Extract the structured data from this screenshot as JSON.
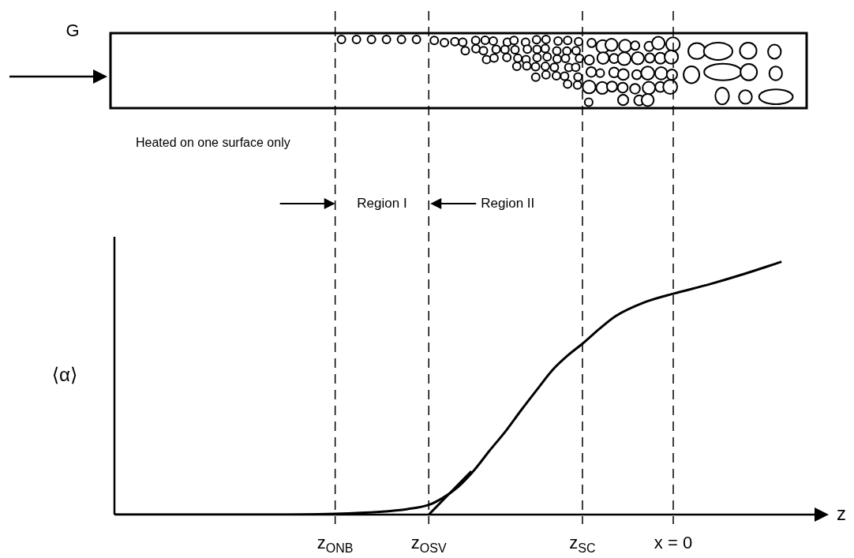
{
  "chart_data": {
    "type": "line",
    "x_label": "z",
    "y_label": "⟨α⟩",
    "xlim": [
      0,
      100
    ],
    "ylim": [
      0,
      100
    ],
    "tick_labels": false,
    "grid": false,
    "series": [
      {
        "x": [
          0,
          20,
          31.6,
          38,
          42,
          45,
          47,
          49.2,
          51.5,
          53.7,
          56,
          58.2,
          60.5,
          62.7,
          65,
          67,
          69.5,
          71.8,
          76,
          80,
          85.3,
          90,
          95.5
        ],
        "values": [
          0,
          0,
          0.3,
          1,
          2,
          3.5,
          6,
          10,
          16,
          23,
          30,
          37.5,
          45,
          52,
          57.5,
          61.5,
          67,
          71.5,
          76.5,
          79.5,
          83,
          86.5,
          91
        ],
        "color": "#000000",
        "line_style": "solid"
      },
      {
        "x": [
          45,
          51.1
        ],
        "values": [
          0,
          15.6
        ],
        "color": "#000000",
        "line_style": "solid"
      }
    ],
    "markers": [
      {
        "label": "z",
        "subscript": "ONB",
        "x": 31.6
      },
      {
        "label": "z",
        "subscript": "OSV",
        "x": 45
      },
      {
        "label": "z",
        "subscript": "SC",
        "x": 67
      },
      {
        "label": "x = 0",
        "x": 80
      }
    ],
    "annotations": [
      "Region I",
      "Region II"
    ],
    "channel": {
      "flow_label": "G",
      "note": "Heated on one surface only"
    }
  }
}
